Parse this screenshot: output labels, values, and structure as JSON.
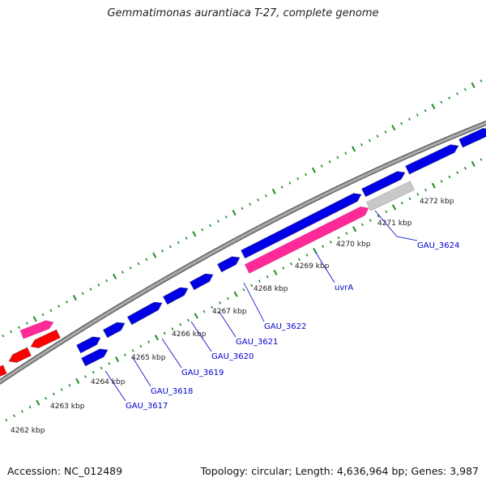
{
  "title": "Gemmatimonas aurantiaca T-27, complete genome",
  "footer": {
    "accession": "Accession: NC_012489",
    "topology": "Topology: circular; Length: 4,636,964 bp; Genes: 3,987"
  },
  "colors": {
    "backbone": "#8c8c8c",
    "forward_gene": "#0000e6",
    "reverse_gene": "#ff0000",
    "rna_gene": "#ff2a9a",
    "other_feature": "#c8c8c8",
    "tick": "#1e8c1e",
    "label_text": "#0000cc",
    "scale_text": "#222222"
  },
  "scale_labels": [
    "4262 kbp",
    "4263 kbp",
    "4264 kbp",
    "4265 kbp",
    "4266 kbp",
    "4267 kbp",
    "4268 kbp",
    "4269 kbp",
    "4270 kbp",
    "4271 kbp",
    "4272 kbp"
  ],
  "gene_labels": [
    "GAU_3617",
    "GAU_3618",
    "GAU_3619",
    "GAU_3620",
    "GAU_3621",
    "GAU_3622",
    "uvrA",
    "GAU_3624"
  ]
}
